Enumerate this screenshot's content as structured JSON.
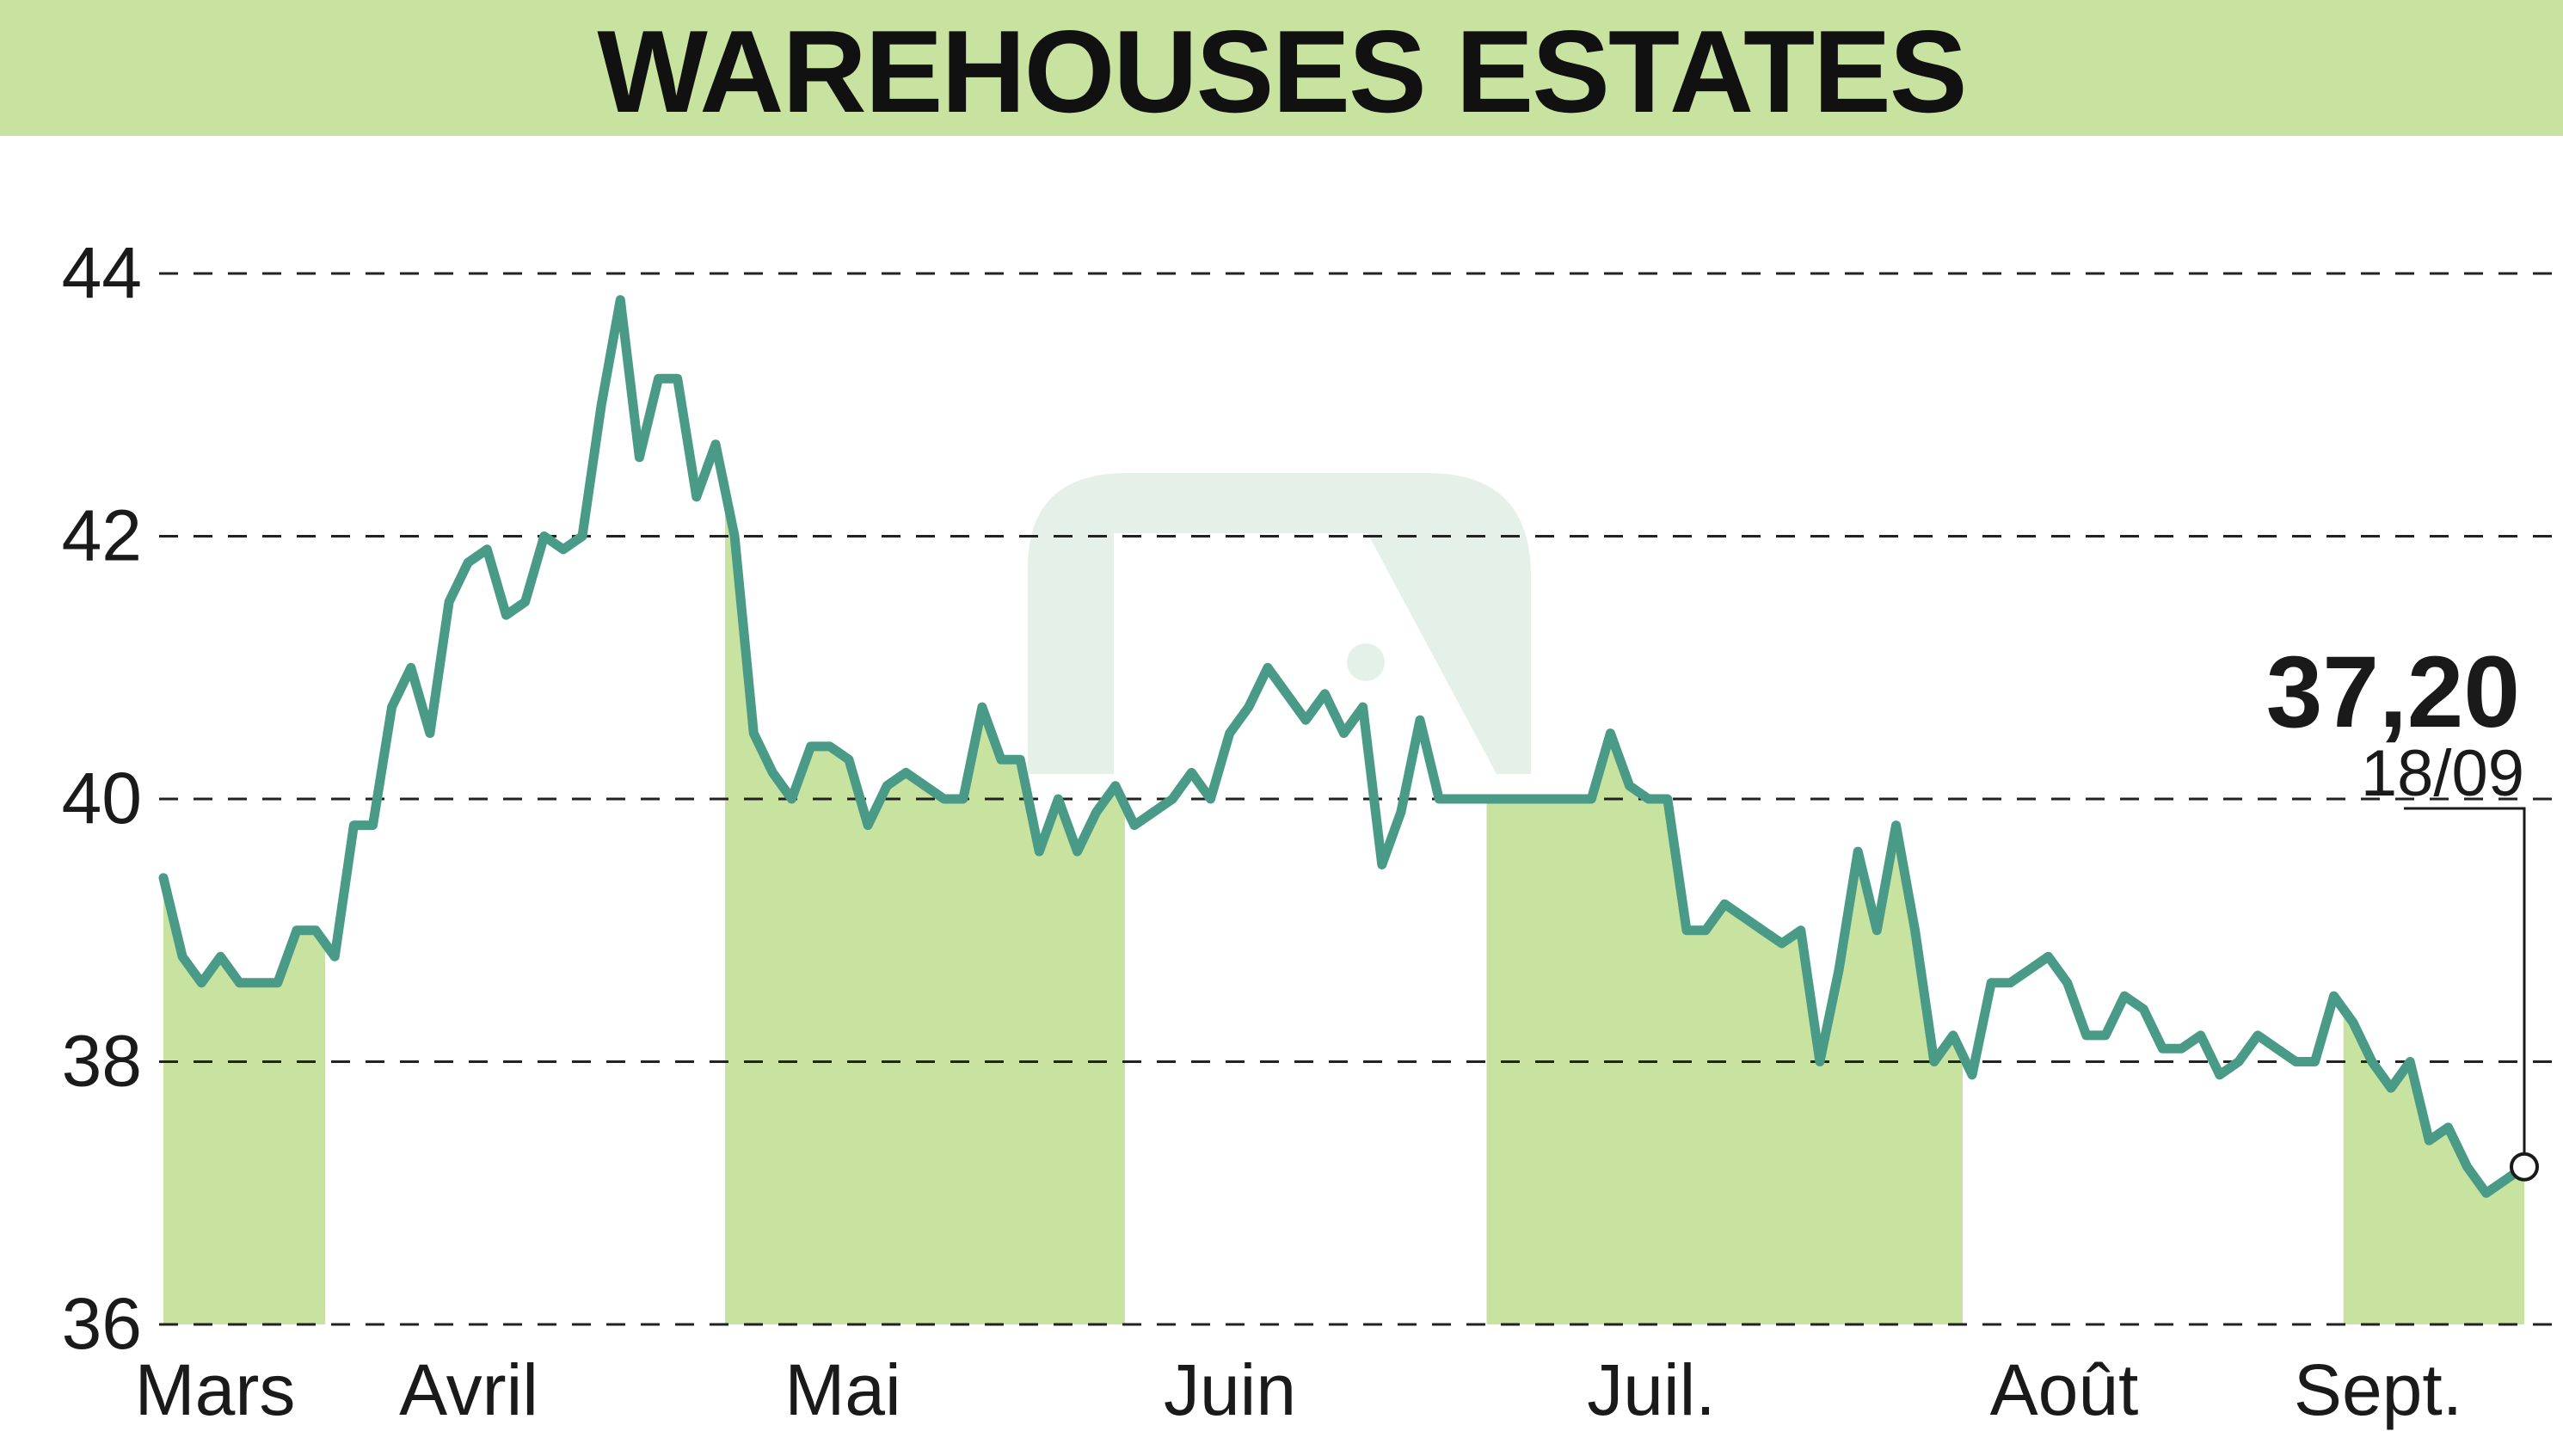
{
  "chart_data": {
    "type": "line",
    "title": "WAREHOUSES ESTATES",
    "ylim": [
      36,
      44
    ],
    "yticks": [
      "36",
      "38",
      "40",
      "42",
      "44"
    ],
    "ytick_values": [
      36,
      38,
      40,
      42,
      44
    ],
    "grid": "horizontal dashed",
    "months": [
      "Mars",
      "Avril",
      "Mai",
      "Juin",
      "Juil.",
      "Août",
      "Sept."
    ],
    "shaded_months": [
      "Mars",
      "Mai",
      "Juil.",
      "Sept."
    ],
    "series": [
      {
        "values": [
          39.4,
          38.8,
          38.6,
          38.8,
          38.6,
          38.6,
          38.6,
          39.0,
          39.0,
          38.8,
          39.8,
          39.8,
          40.7,
          41.0,
          40.5,
          41.5,
          41.8,
          41.9,
          41.4,
          41.5,
          42.0,
          41.9,
          42.0,
          43.0,
          43.8,
          42.6,
          43.2,
          43.2,
          42.3,
          42.7,
          42.0,
          40.5,
          40.2,
          40.0,
          40.4,
          40.4,
          40.3,
          39.8,
          40.1,
          40.2,
          40.1,
          40.0,
          40.0,
          40.7,
          40.3,
          40.3,
          39.6,
          40.0,
          39.6,
          39.9,
          40.1,
          39.8,
          39.9,
          40.0,
          40.2,
          40.0,
          40.5,
          40.7,
          41.0,
          40.8,
          40.6,
          40.8,
          40.5,
          40.7,
          39.5,
          39.9,
          40.6,
          40.0,
          40.0,
          40.0,
          40.0,
          40.0,
          40.0,
          40.0,
          40.0,
          40.0,
          40.5,
          40.1,
          40.0,
          40.0,
          39.0,
          39.0,
          39.2,
          39.1,
          39.0,
          38.9,
          39.0,
          38.0,
          38.7,
          39.6,
          39.0,
          39.8,
          39.0,
          38.0,
          38.2,
          37.9,
          38.6,
          38.6,
          38.7,
          38.8,
          38.6,
          38.2,
          38.2,
          38.5,
          38.4,
          38.1,
          38.1,
          38.2,
          37.9,
          38.0,
          38.2,
          38.1,
          38.0,
          38.0,
          38.5,
          38.3,
          38.0,
          37.8,
          38.0,
          37.4,
          37.5,
          37.2,
          37.0,
          37.1,
          37.2
        ]
      }
    ],
    "last_value": "37,20",
    "last_date": "18/09"
  },
  "colors": {
    "title_band": "#c8e2a0",
    "line": "#4a9a88",
    "shade": "#c8e2a0",
    "grid": "#222222",
    "text": "#1a1a1a",
    "watermark": "#cfe6d6"
  }
}
